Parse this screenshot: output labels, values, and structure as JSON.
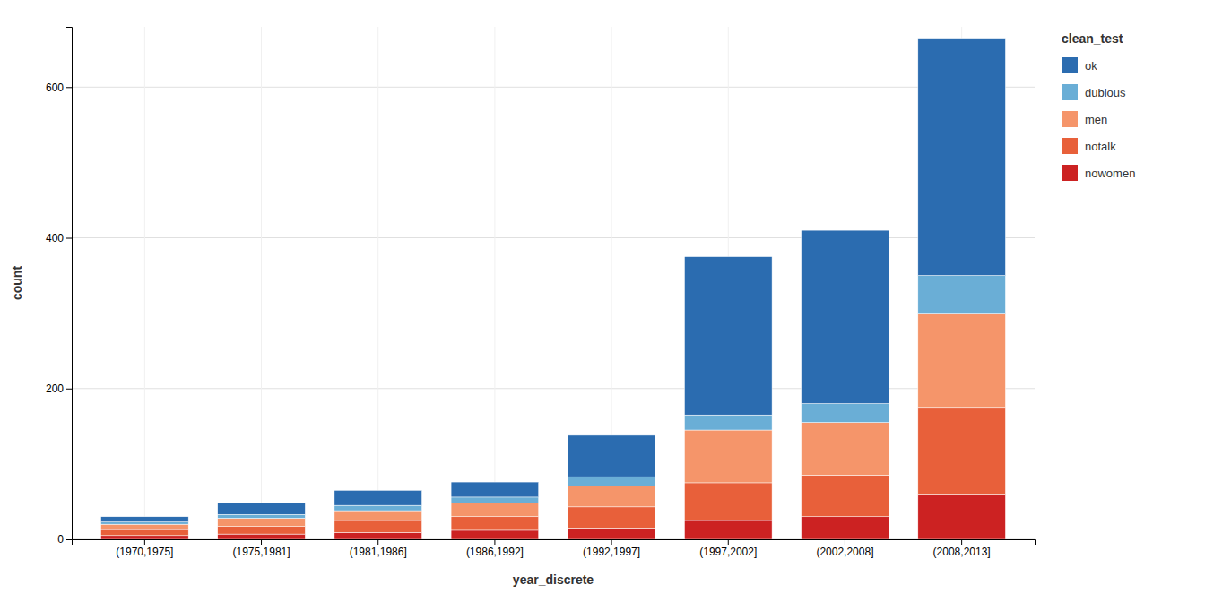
{
  "chart_data": {
    "type": "bar",
    "stacked": true,
    "categories": [
      "(1970,1975]",
      "(1975,1981]",
      "(1981,1986]",
      "(1986,1992]",
      "(1992,1997]",
      "(1997,2002]",
      "(2002,2008]",
      "(2008,2013]"
    ],
    "series": [
      {
        "name": "nowomen",
        "color": "#CC2222",
        "values": [
          5,
          7,
          9,
          12,
          15,
          25,
          30,
          60
        ]
      },
      {
        "name": "notalk",
        "color": "#E8603A",
        "values": [
          8,
          10,
          16,
          18,
          28,
          50,
          55,
          115
        ]
      },
      {
        "name": "men",
        "color": "#F5956A",
        "values": [
          7,
          11,
          13,
          18,
          28,
          70,
          70,
          125
        ]
      },
      {
        "name": "dubious",
        "color": "#6AAED6",
        "values": [
          3,
          5,
          7,
          8,
          12,
          20,
          25,
          50
        ]
      },
      {
        "name": "ok",
        "color": "#2B6CB0",
        "values": [
          7,
          15,
          20,
          20,
          55,
          210,
          230,
          315
        ]
      }
    ],
    "xlabel": "year_discrete",
    "ylabel": "count",
    "ylim": [
      0,
      680
    ],
    "yticks": [
      0,
      200,
      400,
      600
    ],
    "grid": true,
    "legend": "right",
    "legend_title": "clean_test"
  }
}
